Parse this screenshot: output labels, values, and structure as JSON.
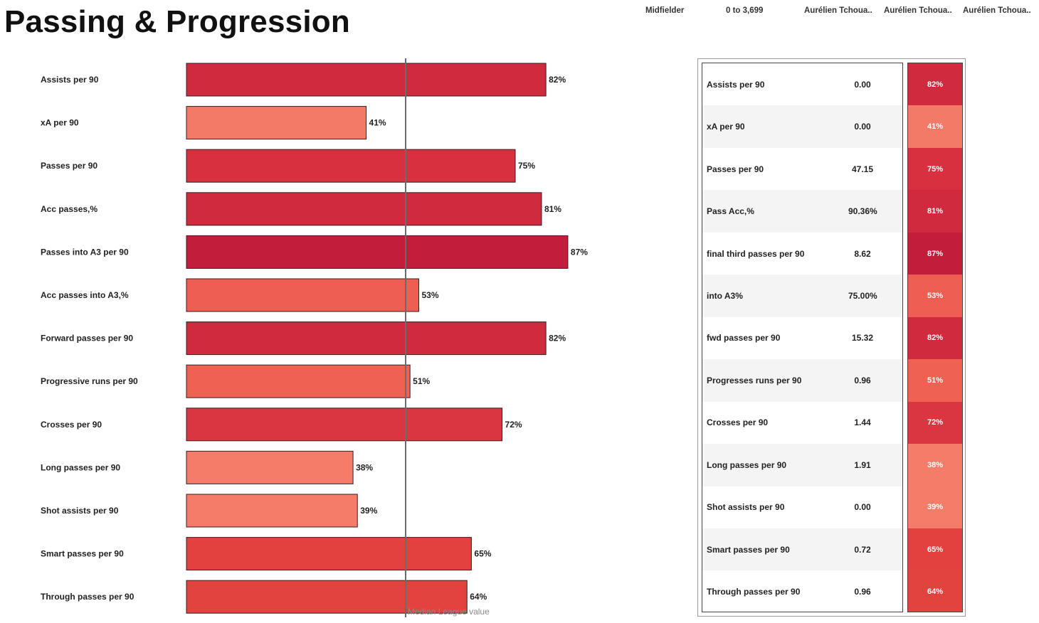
{
  "title": "Passing & Progression",
  "filters": {
    "position": "Midfielder",
    "minutes": "0 to 3,699",
    "player1": "Aurélien Tchoua..",
    "player2": "Aurélien Tchoua..",
    "player3": "Aurélien Tchoua.."
  },
  "chart_data": {
    "type": "bar",
    "orientation": "horizontal",
    "title": "Passing & Progression",
    "xlabel": "",
    "ylabel": "",
    "xlim": [
      0,
      100
    ],
    "median_value": 50,
    "median_label": "Median League value",
    "categories": [
      "Assists per 90",
      "xA per 90",
      "Passes per 90",
      "Acc passes,%",
      "Passes into A3 per 90",
      "Acc passes into A3,%",
      "Forward passes per 90",
      "Progressive runs per 90",
      "Crosses per 90",
      "Long passes per 90",
      "Shot assists per 90",
      "Smart passes per 90",
      "Through passes per 90"
    ],
    "values": [
      82,
      41,
      75,
      81,
      87,
      53,
      82,
      51,
      72,
      38,
      39,
      65,
      64
    ],
    "value_labels": [
      "82%",
      "41%",
      "75%",
      "81%",
      "87%",
      "53%",
      "82%",
      "51%",
      "72%",
      "38%",
      "39%",
      "65%",
      "64%"
    ],
    "colors": [
      "#cf2a3e",
      "#f47a68",
      "#d8303f",
      "#cf2a3e",
      "#c21d3a",
      "#ef5e52",
      "#cf2a3e",
      "#ef6151",
      "#da3640",
      "#f47c69",
      "#f47c69",
      "#e2413f",
      "#e3433f"
    ]
  },
  "table": {
    "rows": [
      {
        "metric": "Assists per 90",
        "value": "0.00",
        "pct": "82%"
      },
      {
        "metric": "xA per 90",
        "value": "0.00",
        "pct": "41%"
      },
      {
        "metric": "Passes per 90",
        "value": "47.15",
        "pct": "75%"
      },
      {
        "metric": "Pass Acc,%",
        "value": "90.36%",
        "pct": "81%"
      },
      {
        "metric": "final third passes per 90",
        "value": "8.62",
        "pct": "87%"
      },
      {
        "metric": "into A3%",
        "value": "75.00%",
        "pct": "53%"
      },
      {
        "metric": "fwd passes per 90",
        "value": "15.32",
        "pct": "82%"
      },
      {
        "metric": "Progresses runs per 90",
        "value": "0.96",
        "pct": "51%"
      },
      {
        "metric": "Crosses per 90",
        "value": "1.44",
        "pct": "72%"
      },
      {
        "metric": "Long passes per 90",
        "value": "1.91",
        "pct": "38%"
      },
      {
        "metric": "Shot assists per 90",
        "value": "0.00",
        "pct": "39%"
      },
      {
        "metric": "Smart passes per 90",
        "value": "0.72",
        "pct": "65%"
      },
      {
        "metric": "Through passes per 90",
        "value": "0.96",
        "pct": "64%"
      }
    ]
  }
}
